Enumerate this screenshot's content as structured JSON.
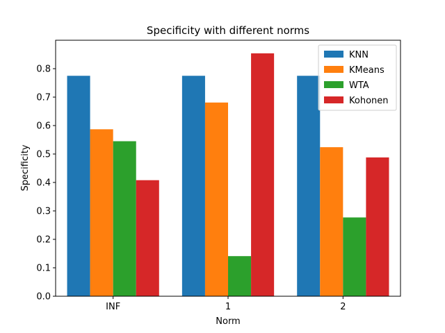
{
  "chart_data": {
    "type": "bar",
    "title": "Specificity with different norms",
    "xlabel": "Norm",
    "ylabel": "Specificity",
    "categories": [
      "INF",
      "1",
      "2"
    ],
    "series": [
      {
        "name": "KNN",
        "color": "#1f77b4",
        "values": [
          0.775,
          0.775,
          0.775
        ]
      },
      {
        "name": "KMeans",
        "color": "#ff7f0e",
        "values": [
          0.587,
          0.681,
          0.524
        ]
      },
      {
        "name": "WTA",
        "color": "#2ca02c",
        "values": [
          0.545,
          0.141,
          0.277
        ]
      },
      {
        "name": "Kohonen",
        "color": "#d62728",
        "values": [
          0.408,
          0.854,
          0.488
        ]
      }
    ],
    "ylim": [
      0,
      0.9
    ],
    "yticks": [
      "0.0",
      "0.1",
      "0.2",
      "0.3",
      "0.4",
      "0.5",
      "0.6",
      "0.7",
      "0.8"
    ],
    "grid": false,
    "legend_position": "top-right"
  }
}
